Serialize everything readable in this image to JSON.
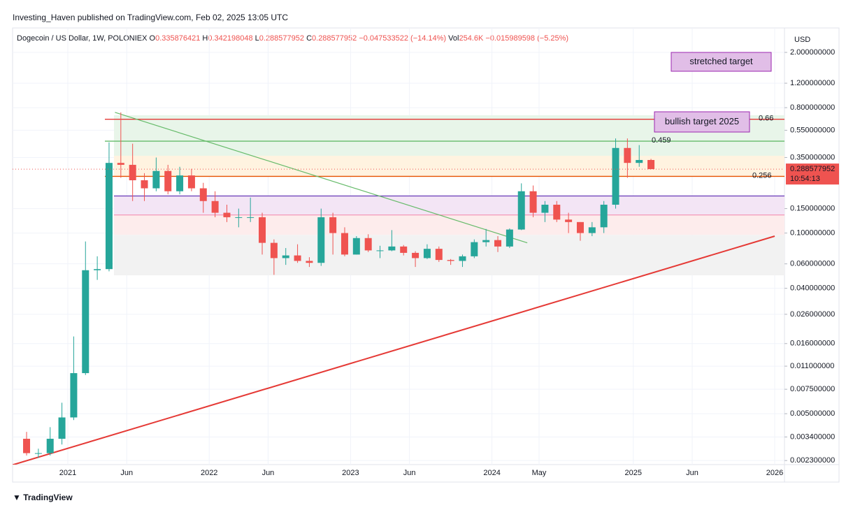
{
  "publisher": "Investing_Haven published on TradingView.com, Feb 02, 2025 13:05 UTC",
  "brand": "TradingView",
  "currency": "USD",
  "chart_data": {
    "type": "candlestick",
    "symbol": "Dogecoin / US Dollar, 1W, POLONIEX",
    "ohlc_header": [
      {
        "label": "O",
        "value": "0.335876421"
      },
      {
        "label": "H",
        "value": "0.342198048"
      },
      {
        "label": "L",
        "value": "0.288577952"
      },
      {
        "label": "C",
        "value": "0.288577952"
      }
    ],
    "change": "−0.047533522 (−14.14%)",
    "volume": {
      "label": "Vol",
      "value": "254.6K"
    },
    "volume_change": "−0.015989598 (−5.25%)",
    "countdown": "10:54:13",
    "x": [
      "2020-09",
      "2020-10",
      "2020-11",
      "2020-12",
      "2021-01",
      "2021-02",
      "2021-03",
      "2021-04",
      "2021-05",
      "2021-06",
      "2021-07",
      "2021-08",
      "2021-09",
      "2021-10",
      "2021-11",
      "2021-12",
      "2022-01",
      "2022-02",
      "2022-03",
      "2022-04",
      "2022-05",
      "2022-06",
      "2022-07",
      "2022-08",
      "2022-09",
      "2022-10",
      "2022-11",
      "2022-12",
      "2023-01",
      "2023-02",
      "2023-03",
      "2023-04",
      "2023-05",
      "2023-06",
      "2023-07",
      "2023-08",
      "2023-09",
      "2023-10",
      "2023-11",
      "2023-12",
      "2024-01",
      "2024-02",
      "2024-03",
      "2024-04",
      "2024-05",
      "2024-06",
      "2024-07",
      "2024-08",
      "2024-09",
      "2024-10",
      "2024-11",
      "2024-12",
      "2025-01",
      "2025-02"
    ],
    "open": [
      0.0033,
      0.0026,
      0.0026,
      0.0033,
      0.0047,
      0.0098,
      0.054,
      0.055,
      0.32,
      0.31,
      0.24,
      0.21,
      0.28,
      0.2,
      0.26,
      0.21,
      0.17,
      0.14,
      0.13,
      0.13,
      0.13,
      0.085,
      0.066,
      0.069,
      0.063,
      0.061,
      0.13,
      0.1,
      0.07,
      0.092,
      0.075,
      0.075,
      0.08,
      0.072,
      0.066,
      0.077,
      0.064,
      0.063,
      0.068,
      0.086,
      0.089,
      0.08,
      0.106,
      0.2,
      0.14,
      0.16,
      0.125,
      0.12,
      0.1,
      0.11,
      0.16,
      0.41,
      0.32,
      0.335876421
    ],
    "high": [
      0.0037,
      0.0028,
      0.004,
      0.006,
      0.018,
      0.087,
      0.068,
      0.45,
      0.74,
      0.44,
      0.27,
      0.35,
      0.31,
      0.3,
      0.29,
      0.23,
      0.2,
      0.16,
      0.15,
      0.18,
      0.14,
      0.09,
      0.078,
      0.083,
      0.067,
      0.15,
      0.14,
      0.11,
      0.095,
      0.098,
      0.081,
      0.105,
      0.082,
      0.074,
      0.083,
      0.08,
      0.065,
      0.07,
      0.09,
      0.107,
      0.095,
      0.108,
      0.228,
      0.22,
      0.17,
      0.17,
      0.14,
      0.12,
      0.12,
      0.17,
      0.48,
      0.48,
      0.43,
      0.342198048
    ],
    "low": [
      0.0025,
      0.0024,
      0.0025,
      0.003,
      0.0045,
      0.0095,
      0.046,
      0.053,
      0.25,
      0.17,
      0.17,
      0.2,
      0.19,
      0.19,
      0.2,
      0.14,
      0.13,
      0.12,
      0.11,
      0.12,
      0.07,
      0.05,
      0.059,
      0.061,
      0.057,
      0.058,
      0.07,
      0.068,
      0.07,
      0.073,
      0.066,
      0.074,
      0.069,
      0.057,
      0.065,
      0.062,
      0.059,
      0.057,
      0.066,
      0.08,
      0.073,
      0.078,
      0.105,
      0.13,
      0.12,
      0.12,
      0.1,
      0.088,
      0.095,
      0.1,
      0.15,
      0.25,
      0.3,
      0.288577952
    ],
    "close": [
      0.0026,
      0.0026,
      0.0033,
      0.0047,
      0.0098,
      0.054,
      0.055,
      0.32,
      0.31,
      0.24,
      0.21,
      0.28,
      0.2,
      0.26,
      0.21,
      0.17,
      0.14,
      0.13,
      0.13,
      0.13,
      0.085,
      0.066,
      0.069,
      0.063,
      0.061,
      0.13,
      0.1,
      0.07,
      0.092,
      0.075,
      0.075,
      0.08,
      0.072,
      0.066,
      0.077,
      0.064,
      0.063,
      0.068,
      0.086,
      0.089,
      0.08,
      0.106,
      0.2,
      0.14,
      0.16,
      0.125,
      0.12,
      0.1,
      0.11,
      0.16,
      0.41,
      0.32,
      0.3359,
      0.288577952
    ],
    "up_color": "#26a69a",
    "down_color": "#ef5350",
    "log_scale": true,
    "grid": true,
    "ylim": [
      0.00215,
      3.0
    ],
    "yticks": [
      {
        "value": 2,
        "label": "2.000000000"
      },
      {
        "value": 1.2,
        "label": "1.200000000"
      },
      {
        "value": 0.8,
        "label": "0.800000000"
      },
      {
        "value": 0.55,
        "label": "0.550000000"
      },
      {
        "value": 0.35,
        "label": "0.350000000"
      },
      {
        "value": 0.15,
        "label": "0.150000000"
      },
      {
        "value": 0.1,
        "label": "0.100000000"
      },
      {
        "value": 0.06,
        "label": "0.060000000"
      },
      {
        "value": 0.04,
        "label": "0.040000000"
      },
      {
        "value": 0.026,
        "label": "0.026000000"
      },
      {
        "value": 0.016,
        "label": "0.016000000"
      },
      {
        "value": 0.011,
        "label": "0.011000000"
      },
      {
        "value": 0.0075,
        "label": "0.007500000"
      },
      {
        "value": 0.005,
        "label": "0.005000000"
      },
      {
        "value": 0.0034,
        "label": "0.003400000"
      },
      {
        "value": 0.0023,
        "label": "0.002300000"
      }
    ],
    "xticks": [
      {
        "value": "2021-01",
        "label": "2021"
      },
      {
        "value": "2021-06",
        "label": "Jun"
      },
      {
        "value": "2022-01",
        "label": "2022"
      },
      {
        "value": "2022-06",
        "label": "Jun"
      },
      {
        "value": "2023-01",
        "label": "2023"
      },
      {
        "value": "2023-06",
        "label": "Jun"
      },
      {
        "value": "2024-01",
        "label": "2024"
      },
      {
        "value": "2024-05",
        "label": "May"
      },
      {
        "value": "2025-01",
        "label": "2025"
      },
      {
        "value": "2025-06",
        "label": "Jun"
      },
      {
        "value": "2026-01",
        "label": "2026"
      }
    ],
    "zones": [
      {
        "from": 0.705,
        "to": 0.36,
        "color": "#e8f5e9"
      },
      {
        "from": 0.36,
        "to": 0.256,
        "color": "#fff3e0"
      },
      {
        "from": 0.185,
        "to": 0.135,
        "color": "#f3e5f5"
      },
      {
        "from": 0.135,
        "to": 0.097,
        "color": "#fdecec"
      },
      {
        "from": 0.097,
        "to": 0.0496,
        "color": "#f2f2f2"
      }
    ],
    "fib_levels": [
      {
        "value": 0.66,
        "color": "#e53935",
        "label_color": "#43a047"
      },
      {
        "value": 0.459,
        "color": "#66bb6a",
        "label_color": "#2e7d32"
      },
      {
        "value": 0.256,
        "color": "#e65100",
        "label_color": "#827717"
      }
    ],
    "levels": [
      {
        "value": 0.185,
        "color": "#673ab7"
      },
      {
        "value": 0.135,
        "color": "#f48fb1"
      }
    ],
    "trendlines": [
      {
        "x": [
          "2021-05",
          "2024-04"
        ],
        "y": [
          0.74,
          0.085
        ],
        "color": "#66bb6a"
      },
      {
        "x": [
          "2020-08",
          "2026-01"
        ],
        "y": [
          0.0021,
          0.095
        ],
        "color": "#e53935"
      }
    ],
    "annotations": [
      {
        "text": "stretched target"
      },
      {
        "text": "bullish target 2025"
      }
    ]
  }
}
